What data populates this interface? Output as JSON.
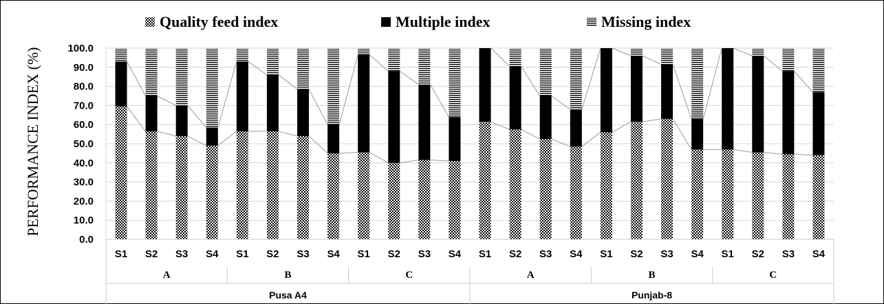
{
  "chart_data": {
    "type": "bar",
    "stacked": true,
    "ylabel": "PERFORMANCE INDEX (%)",
    "ylim": [
      0,
      100
    ],
    "yticks": [
      "0.0",
      "10.0",
      "20.0",
      "30.0",
      "40.0",
      "50.0",
      "60.0",
      "70.0",
      "80.0",
      "90.0",
      "100.0"
    ],
    "grid": true,
    "legend_position": "top",
    "legend": [
      "Quality feed index",
      "Multiple index",
      "Missing index"
    ],
    "varieties": [
      {
        "name": "Pusa A4",
        "groups": [
          {
            "name": "A",
            "categories": [
              "S1",
              "S2",
              "S3",
              "S4"
            ]
          },
          {
            "name": "B",
            "categories": [
              "S1",
              "S2",
              "S3",
              "S4"
            ]
          },
          {
            "name": "C",
            "categories": [
              "S1",
              "S2",
              "S3",
              "S4"
            ]
          }
        ]
      },
      {
        "name": "Punjab-8",
        "groups": [
          {
            "name": "A",
            "categories": [
              "S1",
              "S2",
              "S3",
              "S4"
            ]
          },
          {
            "name": "B",
            "categories": [
              "S1",
              "S2",
              "S3",
              "S4"
            ]
          },
          {
            "name": "C",
            "categories": [
              "S1",
              "S2",
              "S3",
              "S4"
            ]
          }
        ]
      }
    ],
    "series": [
      {
        "name": "Quality feed index",
        "values": [
          69.5,
          56.5,
          54,
          49,
          56.5,
          56.5,
          54,
          45,
          45.5,
          40,
          41.5,
          41,
          61.5,
          57.5,
          52.5,
          48.5,
          56,
          61.5,
          63,
          47,
          47,
          45.5,
          44.5,
          44
        ]
      },
      {
        "name": "Multiple index",
        "values": [
          23.5,
          18.5,
          16,
          9.5,
          36.5,
          29.5,
          24.5,
          15,
          51,
          48,
          39.5,
          23,
          38.5,
          33,
          22.5,
          19.5,
          44,
          34.5,
          28.5,
          16,
          53,
          50.5,
          43.5,
          33
        ]
      },
      {
        "name": "Missing index",
        "values": [
          7,
          25,
          30,
          41.5,
          7,
          14,
          21.5,
          40,
          3.5,
          12,
          19,
          36,
          0,
          9.5,
          25,
          32,
          0,
          4,
          8.5,
          37,
          0,
          4,
          12,
          23
        ]
      }
    ]
  }
}
